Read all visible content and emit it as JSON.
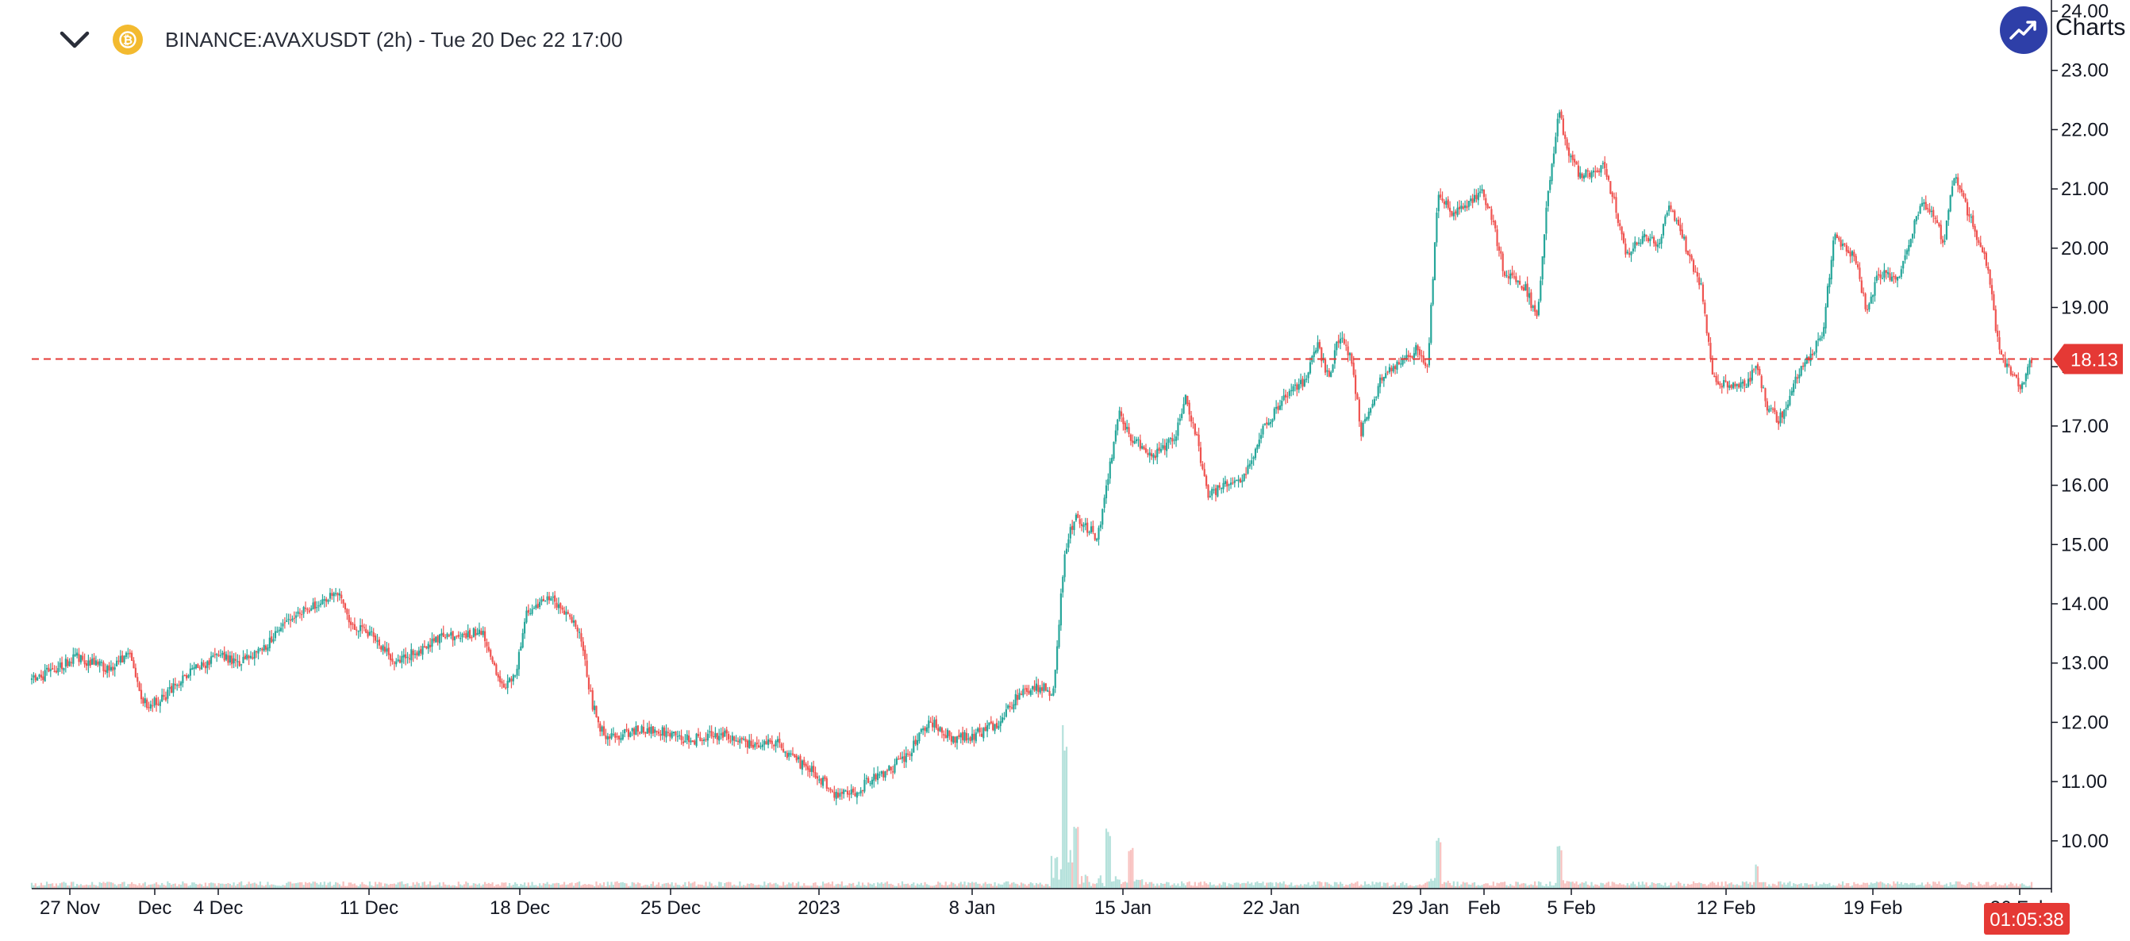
{
  "header": {
    "collapse_icon": "chevron-down-icon",
    "coin_icon": "coin-icon",
    "title": "BINANCE:AVAXUSDT (2h) - Tue 20 Dec 22 17:00"
  },
  "brand": {
    "logo_icon": "trending-up-icon",
    "label": "Charts p"
  },
  "colors": {
    "up": "#26a69a",
    "down": "#ef5350",
    "price_line": "#e53935",
    "axis": "#131722",
    "logo": "#2e3fa8"
  },
  "chart_data": {
    "type": "candlestick",
    "symbol": "BINANCE:AVAXUSDT",
    "interval": "2h",
    "ylim": [
      9.6,
      24.0
    ],
    "y_ticks": [
      "24.00",
      "23.00",
      "22.00",
      "21.00",
      "20.00",
      "19.00",
      "18.00",
      "17.00",
      "16.00",
      "15.00",
      "14.00",
      "13.00",
      "12.00",
      "11.00",
      "10.00"
    ],
    "x_ticks": [
      "27 Nov",
      "Dec",
      "4 Dec",
      "11 Dec",
      "18 Dec",
      "25 Dec",
      "2023",
      "8 Jan",
      "15 Jan",
      "22 Jan",
      "29 Jan",
      "Feb",
      "5 Feb",
      "12 Feb",
      "19 Feb",
      "26 Feb"
    ],
    "last_price": "18.13",
    "countdown": "01:05:38",
    "close_path": [
      [
        0,
        12.7
      ],
      [
        4,
        13.1
      ],
      [
        7,
        12.9
      ],
      [
        9,
        13.2
      ],
      [
        10,
        12.3
      ],
      [
        12,
        12.4
      ],
      [
        14,
        12.8
      ],
      [
        17,
        13.1
      ],
      [
        19,
        13.0
      ],
      [
        21,
        13.2
      ],
      [
        23,
        13.7
      ],
      [
        25,
        13.9
      ],
      [
        28,
        14.2
      ],
      [
        29,
        13.6
      ],
      [
        31,
        13.5
      ],
      [
        33,
        13.0
      ],
      [
        35,
        13.2
      ],
      [
        37,
        13.4
      ],
      [
        39,
        13.5
      ],
      [
        41,
        13.5
      ],
      [
        42,
        13.0
      ],
      [
        43,
        12.6
      ],
      [
        44,
        12.8
      ],
      [
        45,
        13.8
      ],
      [
        47,
        14.1
      ],
      [
        49,
        13.8
      ],
      [
        50,
        13.4
      ],
      [
        51,
        12.3
      ],
      [
        52,
        11.8
      ],
      [
        54,
        11.8
      ],
      [
        56,
        11.9
      ],
      [
        58,
        11.8
      ],
      [
        60,
        11.7
      ],
      [
        62,
        11.8
      ],
      [
        64,
        11.75
      ],
      [
        66,
        11.6
      ],
      [
        68,
        11.7
      ],
      [
        69,
        11.4
      ],
      [
        71,
        11.2
      ],
      [
        72,
        11.0
      ],
      [
        73,
        10.8
      ],
      [
        75,
        10.8
      ],
      [
        76,
        11.0
      ],
      [
        78,
        11.2
      ],
      [
        80,
        11.5
      ],
      [
        81,
        11.9
      ],
      [
        82,
        12.0
      ],
      [
        84,
        11.7
      ],
      [
        86,
        11.8
      ],
      [
        88,
        12.0
      ],
      [
        90,
        12.5
      ],
      [
        92,
        12.6
      ],
      [
        93,
        12.5
      ],
      [
        94,
        14.9
      ],
      [
        95,
        15.5
      ],
      [
        97,
        15.1
      ],
      [
        98,
        16.2
      ],
      [
        99,
        17.2
      ],
      [
        100,
        16.8
      ],
      [
        102,
        16.5
      ],
      [
        104,
        16.8
      ],
      [
        105,
        17.5
      ],
      [
        106,
        16.8
      ],
      [
        107,
        15.8
      ],
      [
        109,
        16.1
      ],
      [
        110,
        16.0
      ],
      [
        112,
        16.9
      ],
      [
        114,
        17.5
      ],
      [
        116,
        17.8
      ],
      [
        117,
        18.4
      ],
      [
        118,
        17.8
      ],
      [
        119,
        18.5
      ],
      [
        120,
        18.2
      ],
      [
        121,
        16.9
      ],
      [
        123,
        17.9
      ],
      [
        125,
        18.1
      ],
      [
        126,
        18.3
      ],
      [
        127,
        17.9
      ],
      [
        128,
        21.0
      ],
      [
        129,
        20.6
      ],
      [
        131,
        20.8
      ],
      [
        132,
        21.0
      ],
      [
        133,
        20.4
      ],
      [
        134,
        19.6
      ],
      [
        136,
        19.3
      ],
      [
        137,
        18.8
      ],
      [
        138,
        21.0
      ],
      [
        139,
        22.3
      ],
      [
        140,
        21.5
      ],
      [
        141,
        21.2
      ],
      [
        143,
        21.4
      ],
      [
        144,
        20.8
      ],
      [
        145,
        19.9
      ],
      [
        147,
        20.2
      ],
      [
        148,
        20.0
      ],
      [
        149,
        20.8
      ],
      [
        151,
        19.8
      ],
      [
        152,
        19.3
      ],
      [
        153,
        17.8
      ],
      [
        154,
        17.7
      ],
      [
        156,
        17.7
      ],
      [
        157,
        18.0
      ],
      [
        158,
        17.3
      ],
      [
        159,
        17.1
      ],
      [
        160,
        17.5
      ],
      [
        161,
        18.0
      ],
      [
        162,
        18.2
      ],
      [
        163,
        18.6
      ],
      [
        164,
        20.2
      ],
      [
        166,
        19.8
      ],
      [
        167,
        18.9
      ],
      [
        168,
        19.6
      ],
      [
        170,
        19.5
      ],
      [
        171,
        20.2
      ],
      [
        172,
        20.8
      ],
      [
        173,
        20.6
      ],
      [
        174,
        20.1
      ],
      [
        175,
        21.3
      ],
      [
        176,
        20.7
      ],
      [
        177,
        20.2
      ],
      [
        178,
        19.7
      ],
      [
        179,
        18.3
      ],
      [
        180,
        17.9
      ],
      [
        181,
        17.7
      ],
      [
        182,
        18.1
      ]
    ],
    "volume_spikes": [
      [
        94,
        0.85
      ],
      [
        95,
        0.35
      ],
      [
        98,
        0.32
      ],
      [
        100,
        0.22
      ],
      [
        128,
        0.26
      ],
      [
        139,
        0.22
      ],
      [
        157,
        0.14
      ]
    ]
  }
}
